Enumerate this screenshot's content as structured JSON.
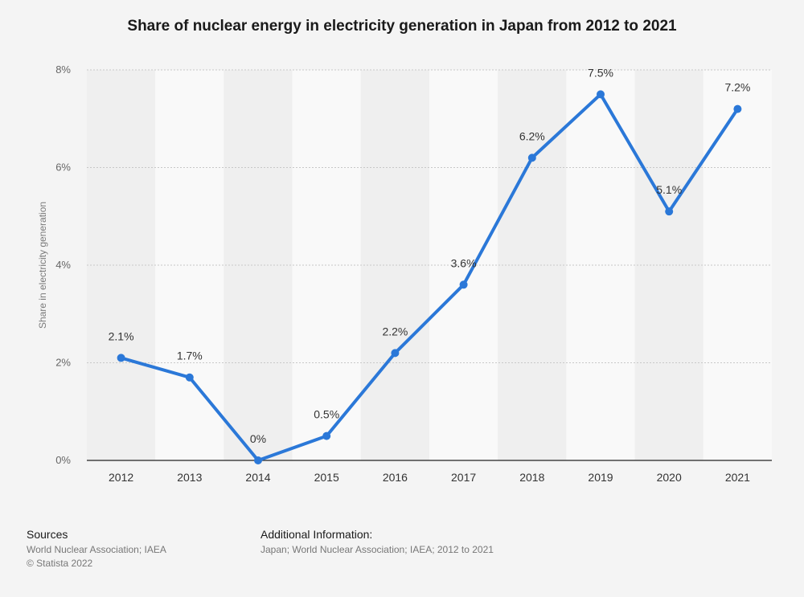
{
  "chart_data": {
    "type": "line",
    "title": "Share of nuclear energy in electricity generation in Japan from 2012 to 2021",
    "xlabel": "",
    "ylabel": "Share in electricity generation",
    "categories": [
      "2012",
      "2013",
      "2014",
      "2015",
      "2016",
      "2017",
      "2018",
      "2019",
      "2020",
      "2021"
    ],
    "series": [
      {
        "name": "Share in electricity generation",
        "values": [
          2.1,
          1.7,
          0,
          0.5,
          2.2,
          3.6,
          6.2,
          7.5,
          5.1,
          7.2
        ],
        "labels": [
          "2.1%",
          "1.7%",
          "0%",
          "0.5%",
          "2.2%",
          "3.6%",
          "6.2%",
          "7.5%",
          "5.1%",
          "7.2%"
        ]
      }
    ],
    "ylim": [
      0,
      8
    ],
    "yticks": [
      0,
      2,
      4,
      6,
      8
    ],
    "ytick_labels": [
      "0%",
      "2%",
      "4%",
      "6%",
      "8%"
    ],
    "grid": true,
    "line_color": "#2b78d8"
  },
  "footer": {
    "sources_heading": "Sources",
    "sources_lines": [
      "World Nuclear Association; IAEA",
      "© Statista 2022"
    ],
    "additional_heading": "Additional Information:",
    "additional_text": "Japan; World Nuclear Association; IAEA; 2012 to 2021"
  }
}
